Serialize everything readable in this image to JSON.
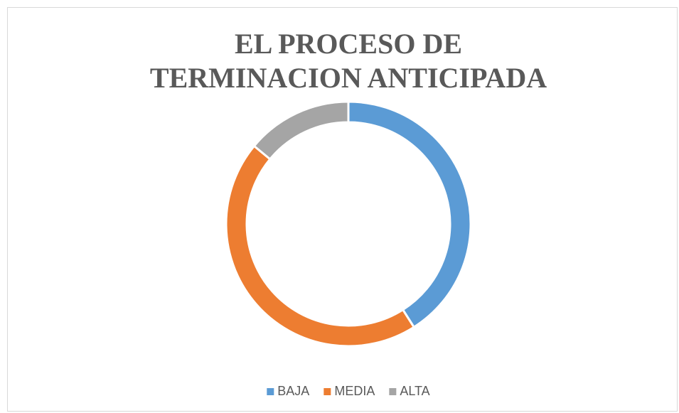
{
  "chart_data": {
    "type": "donut",
    "title": "EL PROCESO DE TERMINACION ANTICIPADA",
    "categories": [
      "BAJA",
      "MEDIA",
      "ALTA"
    ],
    "values": [
      41,
      45,
      14
    ],
    "colors": [
      "#5b9bd5",
      "#ed7d31",
      "#a5a5a5"
    ],
    "legend": "bottom"
  }
}
